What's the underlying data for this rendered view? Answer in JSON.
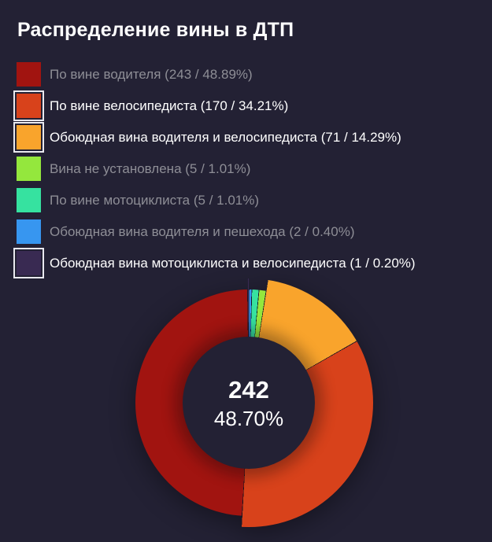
{
  "title": "Распределение вины в ДТП",
  "background_color": "#232134",
  "text_colors": {
    "title": "#ffffff",
    "legend_dim": "#8e8e96",
    "legend_active": "#ffffff"
  },
  "center": {
    "value": "242",
    "percent": "48.70%"
  },
  "legend": [
    {
      "label": "По вине водителя (243 / 48.89%)",
      "color": "#a11410",
      "active": false
    },
    {
      "label": "По вине велосипедиста (170 / 34.21%)",
      "color": "#d8421b",
      "active": true
    },
    {
      "label": "Обоюдная вина водителя и велосипедиста (71 / 14.29%)",
      "color": "#f9a42c",
      "active": true
    },
    {
      "label": "Вина не установлена (5 / 1.01%)",
      "color": "#94e73d",
      "active": false
    },
    {
      "label": "По вине мотоциклиста (5 / 1.01%)",
      "color": "#36e2a0",
      "active": false
    },
    {
      "label": "Обоюдная вина водителя и пешехода (2 / 0.40%)",
      "color": "#3796f0",
      "active": false
    },
    {
      "label": "Обоюдная вина мотоциклиста и велосипедиста (1 / 0.20%)",
      "color": "#392a52",
      "active": true
    }
  ],
  "chart_data": {
    "type": "pie",
    "donut": true,
    "title": "Распределение вины в ДТП",
    "categories": [
      "По вине водителя",
      "По вине велосипедиста",
      "Обоюдная вина водителя и велосипедиста",
      "Вина не установлена",
      "По вине мотоциклиста",
      "Обоюдная вина водителя и пешехода",
      "Обоюдная вина мотоциклиста и велосипедиста"
    ],
    "values": [
      243,
      170,
      71,
      5,
      5,
      2,
      1
    ],
    "percents": [
      48.89,
      34.21,
      14.29,
      1.01,
      1.01,
      0.4,
      0.2
    ],
    "colors": [
      "#a11410",
      "#d8421b",
      "#f9a42c",
      "#94e73d",
      "#36e2a0",
      "#3796f0",
      "#392a52"
    ],
    "selected": [
      false,
      true,
      true,
      false,
      false,
      false,
      true
    ],
    "center_label": {
      "value": "242",
      "percent": "48.70%"
    },
    "legend_position": "top-left",
    "draw_direction": "counterclockwise-from-top",
    "grid": false
  }
}
